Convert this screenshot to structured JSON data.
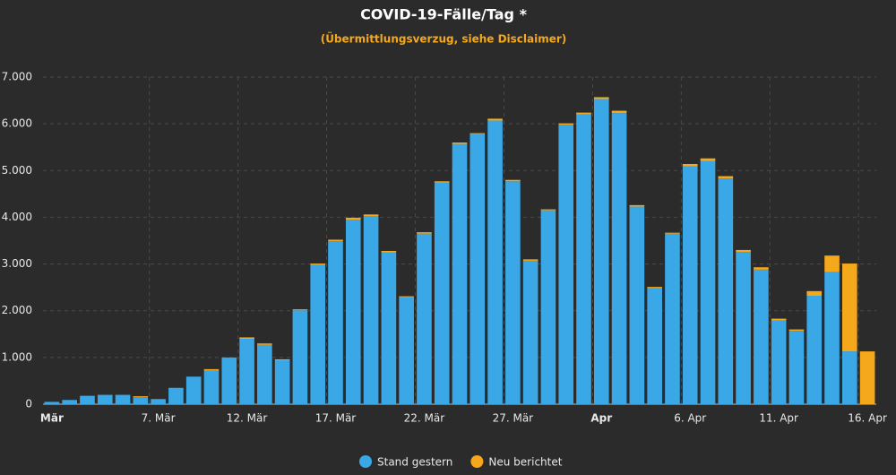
{
  "chart_data": {
    "type": "stacked_bar",
    "title": "COVID-19-Fälle/Tag *",
    "subtitle": "(Übermittlungsverzug, siehe Disclaimer)",
    "categories": [
      "Mär",
      null,
      null,
      null,
      null,
      null,
      "7. Mär",
      null,
      null,
      null,
      null,
      "12. Mär",
      null,
      null,
      null,
      null,
      "17. Mär",
      null,
      null,
      null,
      null,
      "22. Mär",
      null,
      null,
      null,
      null,
      "27. Mär",
      null,
      null,
      null,
      null,
      "Apr",
      null,
      null,
      null,
      null,
      "6. Apr",
      null,
      null,
      null,
      null,
      "11. Apr",
      null,
      null,
      null,
      null,
      "16. Apr"
    ],
    "series": [
      {
        "name": "Stand gestern",
        "color": "#3aa8e6",
        "values": [
          50,
          90,
          180,
          200,
          200,
          150,
          110,
          350,
          590,
          720,
          1000,
          1400,
          1270,
          940,
          2010,
          2980,
          3490,
          3950,
          4020,
          3250,
          2290,
          3650,
          4740,
          5570,
          5780,
          6070,
          4770,
          3070,
          4150,
          5980,
          6200,
          6530,
          6230,
          4230,
          2480,
          3650,
          5090,
          5200,
          4830,
          3260,
          2880,
          1790,
          1570,
          2320,
          2830,
          1130,
          0
        ]
      },
      {
        "name": "Neu berichtet",
        "color": "#f5a81c",
        "values": [
          0,
          0,
          0,
          0,
          0,
          20,
          0,
          0,
          0,
          30,
          0,
          30,
          30,
          20,
          20,
          30,
          30,
          40,
          40,
          30,
          20,
          30,
          30,
          30,
          20,
          40,
          30,
          30,
          20,
          30,
          40,
          40,
          50,
          30,
          30,
          20,
          50,
          60,
          50,
          40,
          50,
          40,
          30,
          100,
          350,
          1880,
          1130
        ]
      }
    ],
    "ylim": [
      0,
      7000
    ],
    "yticks": [
      0,
      {
        "value": 1000,
        "label": "1.000"
      },
      {
        "value": 2000,
        "label": "2.000"
      },
      {
        "value": 3000,
        "label": "3.000"
      },
      {
        "value": 4000,
        "label": "4.000"
      },
      {
        "value": 5000,
        "label": "5.000"
      },
      {
        "value": 6000,
        "label": "6.000"
      },
      {
        "value": 7000,
        "label": "7.000"
      }
    ],
    "grid": true
  }
}
